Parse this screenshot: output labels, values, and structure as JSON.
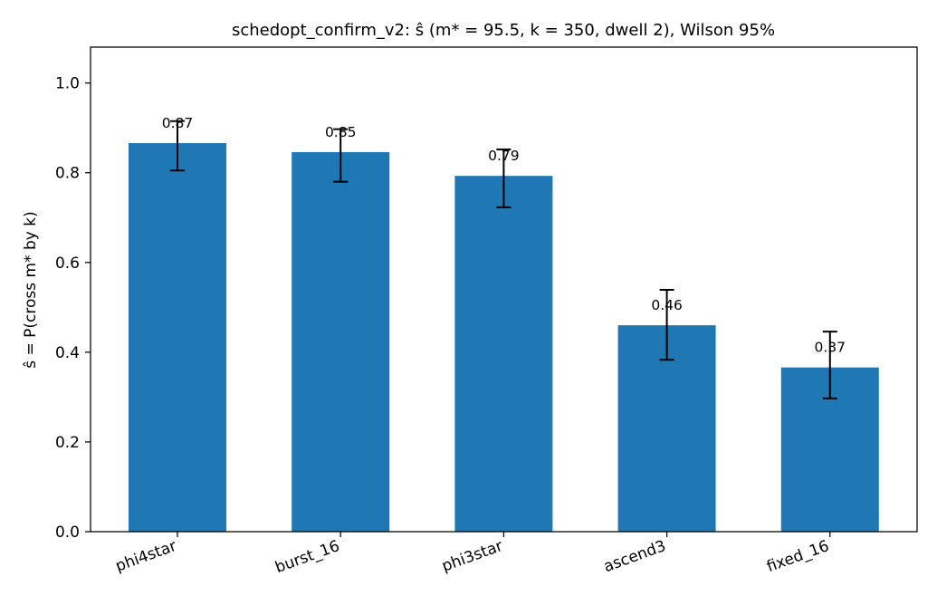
{
  "chart_data": {
    "type": "bar",
    "title": "schedopt_confirm_v2: ŝ (m* = 95.5, k = 350, dwell 2), Wilson 95%",
    "xlabel": "",
    "ylabel": "ŝ = P(cross m* by k)",
    "categories": [
      "phi4star",
      "burst_16",
      "phi3star",
      "ascend3",
      "fixed_16"
    ],
    "values": [
      0.866,
      0.846,
      0.793,
      0.46,
      0.366
    ],
    "data_labels": [
      "0.87",
      "0.85",
      "0.79",
      "0.46",
      "0.37"
    ],
    "error_low": [
      0.805,
      0.78,
      0.723,
      0.383,
      0.297
    ],
    "error_high": [
      0.915,
      0.897,
      0.852,
      0.539,
      0.446
    ],
    "ylim": [
      0,
      1.08
    ],
    "yticks": [
      0.0,
      0.2,
      0.4,
      0.6,
      0.8,
      1.0
    ],
    "ytick_labels": [
      "0.0",
      "0.2",
      "0.4",
      "0.6",
      "0.8",
      "1.0"
    ],
    "bar_color": "#1f77b4",
    "error_color": "#000000",
    "grid": false,
    "legend": "none"
  }
}
